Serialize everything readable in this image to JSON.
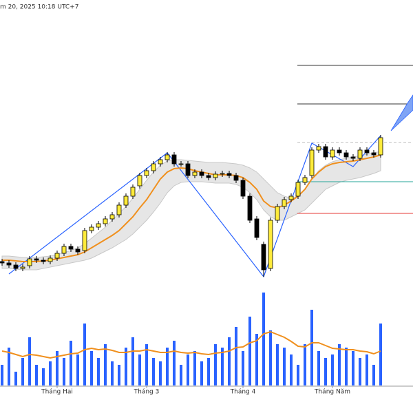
{
  "chart_data": {
    "type": "candlestick",
    "timestamp": "m 20, 2025 10:18 UTC+7",
    "xlim": [
      -0.5,
      55.5
    ],
    "xticks": [
      {
        "value": 8,
        "label": "Tháng Hai"
      },
      {
        "value": 21,
        "label": "Tháng 3"
      },
      {
        "value": 35,
        "label": "Tháng 4"
      },
      {
        "value": 48,
        "label": "Tháng Năm"
      }
    ],
    "ylim": [
      0,
      410
    ],
    "up_color": "#ffeb3b",
    "down_color": "#000000",
    "open": [
      40,
      38,
      35,
      30,
      34,
      44,
      42,
      40,
      45,
      52,
      62,
      58,
      56,
      85,
      90,
      95,
      102,
      108,
      122,
      135,
      150,
      165,
      172,
      182,
      188,
      195,
      182,
      182,
      165,
      170,
      165,
      162,
      167,
      168,
      165,
      158,
      135,
      102,
      65,
      30,
      100,
      120,
      130,
      135,
      155,
      165,
      202,
      207,
      192,
      202,
      198,
      192,
      190,
      202,
      198,
      195
    ],
    "high": [
      44,
      42,
      39,
      36,
      48,
      48,
      46,
      49,
      56,
      66,
      66,
      62,
      89,
      94,
      99,
      106,
      112,
      126,
      139,
      152,
      169,
      176,
      186,
      192,
      199,
      199,
      186,
      186,
      174,
      174,
      169,
      171,
      172,
      172,
      169,
      162,
      139,
      106,
      69,
      104,
      124,
      134,
      139,
      159,
      166,
      206,
      211,
      211,
      206,
      206,
      202,
      196,
      206,
      206,
      202,
      224
    ],
    "low": [
      34,
      31,
      26,
      26,
      30,
      38,
      36,
      36,
      41,
      48,
      54,
      50,
      52,
      81,
      86,
      91,
      98,
      104,
      118,
      131,
      146,
      161,
      168,
      178,
      184,
      178,
      178,
      161,
      161,
      161,
      158,
      158,
      163,
      161,
      154,
      131,
      96,
      71,
      18,
      26,
      96,
      116,
      126,
      131,
      151,
      161,
      198,
      188,
      188,
      194,
      188,
      186,
      186,
      194,
      191,
      191
    ],
    "close": [
      38,
      35,
      30,
      32,
      44,
      42,
      40,
      45,
      52,
      62,
      58,
      54,
      85,
      90,
      95,
      102,
      108,
      122,
      135,
      148,
      165,
      172,
      182,
      188,
      195,
      182,
      182,
      165,
      170,
      165,
      162,
      167,
      168,
      165,
      158,
      135,
      100,
      75,
      28,
      100,
      120,
      130,
      135,
      155,
      162,
      202,
      207,
      192,
      202,
      198,
      192,
      190,
      202,
      198,
      195,
      220
    ],
    "ma": [
      42,
      42,
      41,
      40,
      40,
      40,
      41,
      42,
      44,
      46,
      48,
      50,
      54,
      60,
      66,
      72,
      78,
      85,
      95,
      105,
      118,
      130,
      145,
      160,
      170,
      175,
      176,
      175,
      172,
      170,
      168,
      166,
      166,
      166,
      165,
      162,
      155,
      145,
      128,
      120,
      118,
      122,
      128,
      135,
      145,
      160,
      170,
      178,
      182,
      184,
      185,
      186,
      188,
      190,
      192,
      195
    ],
    "ma_color": "#f0901e",
    "band_upper": [
      48,
      48,
      47,
      46,
      46,
      46,
      47,
      48,
      50,
      53,
      56,
      60,
      66,
      74,
      82,
      90,
      100,
      110,
      120,
      132,
      145,
      158,
      170,
      180,
      186,
      188,
      188,
      187,
      186,
      185,
      184,
      184,
      184,
      183,
      182,
      180,
      176,
      170,
      160,
      150,
      140,
      135,
      132,
      135,
      145,
      160,
      172,
      180,
      185,
      188,
      190,
      192,
      194,
      196,
      198,
      200
    ],
    "band_lower": [
      30,
      30,
      29,
      28,
      28,
      28,
      30,
      32,
      34,
      36,
      38,
      40,
      42,
      45,
      50,
      55,
      60,
      66,
      72,
      80,
      90,
      100,
      112,
      125,
      140,
      150,
      155,
      156,
      156,
      156,
      155,
      154,
      154,
      154,
      152,
      148,
      140,
      130,
      115,
      105,
      100,
      100,
      105,
      110,
      115,
      125,
      135,
      145,
      150,
      155,
      158,
      160,
      162,
      165,
      168,
      172
    ],
    "band_color": "#e6e6e6",
    "zigzag_x": [
      1,
      24,
      38,
      45,
      51,
      55
    ],
    "zigzag_y": [
      22,
      198,
      18,
      212,
      178,
      223
    ],
    "zigzag_color": "#2962ff",
    "levels": [
      325,
      269,
      213,
      156,
      110
    ],
    "level_colors": [
      "#333333",
      "#333333",
      "#bbbbbb",
      "#26a69a",
      "#e53935"
    ],
    "level_styles": [
      "solid",
      "solid",
      "dashed",
      "solid",
      "solid"
    ],
    "volume": [
      30,
      55,
      20,
      40,
      70,
      30,
      25,
      35,
      50,
      40,
      65,
      45,
      90,
      50,
      40,
      60,
      35,
      30,
      55,
      70,
      45,
      60,
      40,
      35,
      55,
      65,
      30,
      45,
      50,
      35,
      40,
      60,
      55,
      70,
      85,
      50,
      100,
      75,
      135,
      80,
      60,
      55,
      45,
      30,
      60,
      110,
      50,
      40,
      45,
      60,
      55,
      50,
      40,
      45,
      30,
      90
    ],
    "volume_ma": [
      50,
      48,
      45,
      42,
      45,
      44,
      42,
      40,
      42,
      44,
      46,
      47,
      52,
      54,
      52,
      53,
      51,
      48,
      48,
      50,
      50,
      52,
      50,
      48,
      48,
      50,
      48,
      47,
      48,
      46,
      45,
      47,
      48,
      50,
      55,
      56,
      62,
      65,
      75,
      78,
      74,
      70,
      64,
      57,
      56,
      62,
      62,
      58,
      54,
      53,
      52,
      52,
      50,
      49,
      46,
      50
    ],
    "volume_lim": [
      0,
      140
    ],
    "volume_color": "#2962ff"
  }
}
